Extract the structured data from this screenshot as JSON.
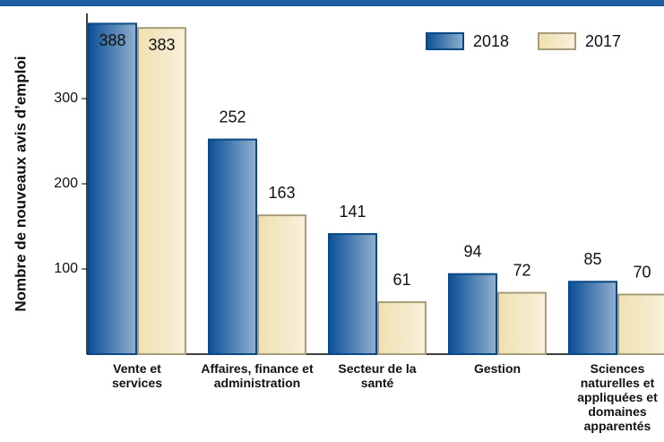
{
  "chart_data": {
    "type": "bar",
    "y_label": "Nombre de nouveaux avis d’emploi",
    "categories": [
      "Vente et services",
      "Affaires, finance et administration",
      "Secteur de la santé",
      "Gestion",
      "Sciences naturelles et appliquées et domaines apparentés"
    ],
    "series": [
      {
        "name": "2018",
        "color": "#0b5096",
        "values": [
          388,
          252,
          141,
          94,
          85
        ]
      },
      {
        "name": "2017",
        "color": "#efe0b0",
        "values": [
          383,
          163,
          61,
          72,
          70
        ]
      }
    ],
    "ylim": [
      0,
      400
    ],
    "yticks": [
      100,
      200,
      300
    ],
    "legend": "top-right"
  }
}
